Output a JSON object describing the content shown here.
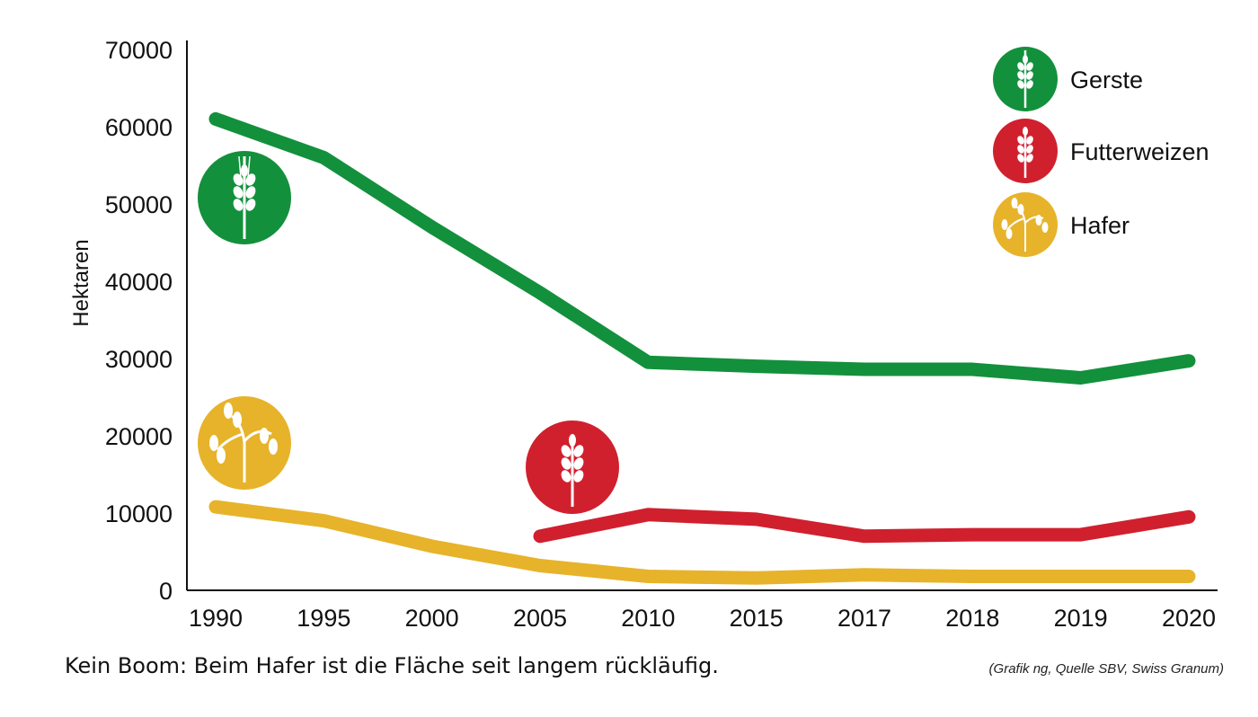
{
  "chart_data": {
    "type": "line",
    "title": "",
    "xlabel": "",
    "ylabel": "Hektaren",
    "categories": [
      "1990",
      "1995",
      "2000",
      "2005",
      "2010",
      "2015",
      "2017",
      "2018",
      "2019",
      "2020"
    ],
    "ylim": [
      0,
      70000
    ],
    "yticks": [
      "0",
      "10000",
      "20000",
      "30000",
      "40000",
      "50000",
      "60000",
      "70000"
    ],
    "grid": false,
    "legend_position": "top-right",
    "series": [
      {
        "name": "Gerste",
        "color": "#13903c",
        "icon": "barley-icon",
        "values": [
          61000,
          56000,
          47000,
          38500,
          29500,
          29000,
          28600,
          28600,
          27500,
          29700
        ]
      },
      {
        "name": "Futterweizen",
        "color": "#d0202e",
        "icon": "wheat-icon",
        "values": [
          null,
          null,
          null,
          7000,
          9800,
          9200,
          7000,
          7200,
          7200,
          9500
        ]
      },
      {
        "name": "Hafer",
        "color": "#e7b32a",
        "icon": "oat-icon",
        "values": [
          10800,
          9000,
          5700,
          3200,
          1800,
          1600,
          2000,
          1800,
          1800,
          1800
        ]
      }
    ]
  },
  "caption": "Kein Boom: Beim Hafer ist die Fläche seit langem rückläufig.",
  "source": "(Grafik ng, Quelle SBV, Swiss Granum)"
}
